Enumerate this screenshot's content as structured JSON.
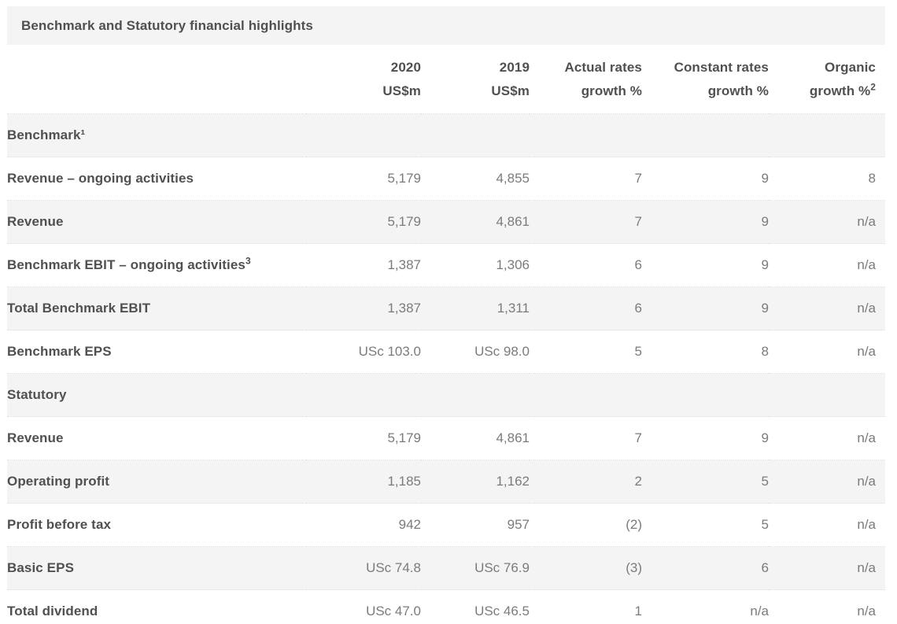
{
  "table": {
    "title": "Benchmark and Statutory financial highlights",
    "colors": {
      "row_stripe": "#f4f4f4",
      "label_text": "#505052",
      "value_text": "#7b7b7e"
    },
    "columns": [
      {
        "line1": "2020",
        "line2": "US$m",
        "sup": ""
      },
      {
        "line1": "2019",
        "line2": "US$m",
        "sup": ""
      },
      {
        "line1": "Actual rates",
        "line2": "growth %",
        "sup": ""
      },
      {
        "line1": "Constant rates",
        "line2": "growth %",
        "sup": ""
      },
      {
        "line1": "Organic",
        "line2": "growth %",
        "sup": "2"
      }
    ],
    "rows": [
      {
        "type": "section",
        "label": "Benchmark¹",
        "sup": "",
        "values": [
          "",
          "",
          "",
          "",
          ""
        ]
      },
      {
        "type": "data",
        "label": "Revenue – ongoing activities",
        "sup": "",
        "values": [
          "5,179",
          "4,855",
          "7",
          "9",
          "8"
        ]
      },
      {
        "type": "data",
        "label": "Revenue",
        "sup": "",
        "values": [
          "5,179",
          "4,861",
          "7",
          "9",
          "n/a"
        ]
      },
      {
        "type": "data",
        "label": "Benchmark EBIT – ongoing activities",
        "sup": "3",
        "values": [
          "1,387",
          "1,306",
          "6",
          "9",
          "n/a"
        ]
      },
      {
        "type": "data",
        "label": "Total Benchmark EBIT",
        "sup": "",
        "values": [
          "1,387",
          "1,311",
          "6",
          "9",
          "n/a"
        ]
      },
      {
        "type": "data",
        "label": "Benchmark EPS",
        "sup": "",
        "values": [
          "USc 103.0",
          "USc 98.0",
          "5",
          "8",
          "n/a"
        ]
      },
      {
        "type": "section",
        "label": "Statutory",
        "sup": "",
        "values": [
          "",
          "",
          "",
          "",
          ""
        ]
      },
      {
        "type": "data",
        "label": "Revenue",
        "sup": "",
        "values": [
          "5,179",
          "4,861",
          "7",
          "9",
          "n/a"
        ]
      },
      {
        "type": "data",
        "label": "Operating profit",
        "sup": "",
        "values": [
          "1,185",
          "1,162",
          "2",
          "5",
          "n/a"
        ]
      },
      {
        "type": "data",
        "label": "Profit before tax",
        "sup": "",
        "values": [
          "942",
          "957",
          "(2)",
          "5",
          "n/a"
        ]
      },
      {
        "type": "data",
        "label": "Basic EPS",
        "sup": "",
        "values": [
          "USc 74.8",
          "USc 76.9",
          "(3)",
          "6",
          "n/a"
        ]
      },
      {
        "type": "data",
        "label": "Total dividend",
        "sup": "",
        "values": [
          "USc 47.0",
          "USc 46.5",
          "1",
          "n/a",
          "n/a"
        ]
      }
    ]
  }
}
